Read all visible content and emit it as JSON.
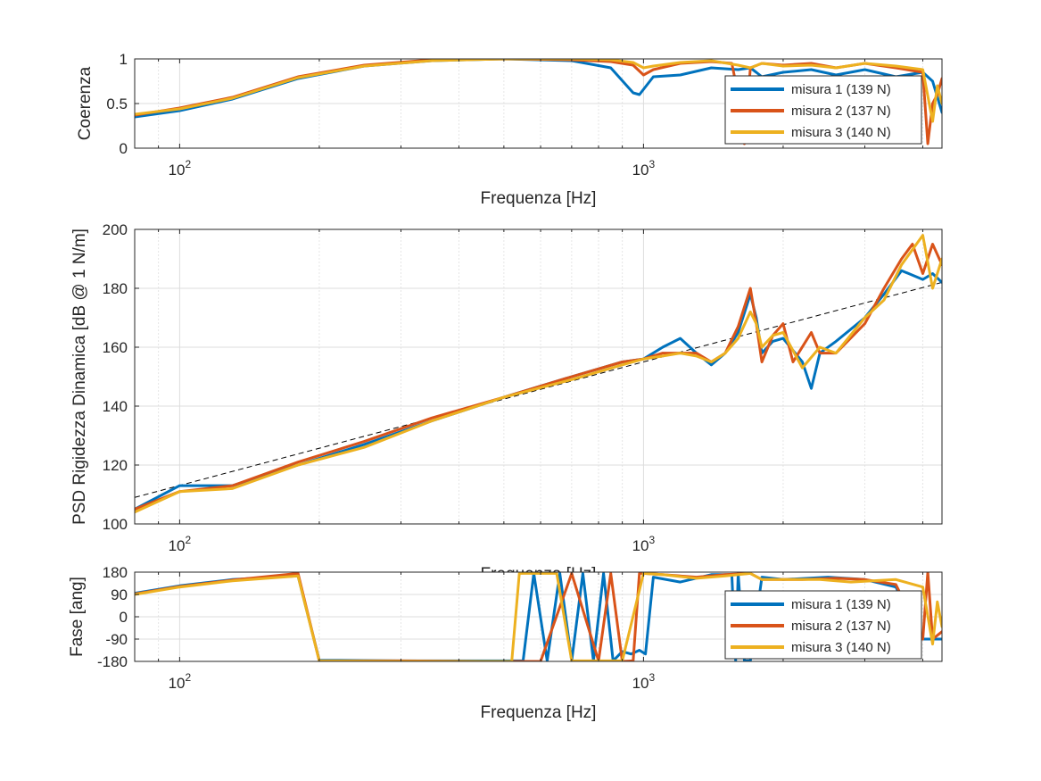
{
  "chart_data": [
    {
      "type": "line",
      "xscale": "log",
      "xlim": [
        80,
        4400
      ],
      "ylim": [
        0,
        1
      ],
      "xlabel": "Frequenza [Hz]",
      "ylabel": "Coerenza",
      "xticks": [
        {
          "value": 100,
          "base": "10",
          "exp": "2"
        },
        {
          "value": 1000,
          "base": "10",
          "exp": "3"
        }
      ],
      "yticks": [
        "0",
        "0.5",
        "1"
      ],
      "yticks_values": [
        0,
        0.5,
        1
      ],
      "grid": true,
      "legend_location": "right",
      "series": [
        {
          "name": "misura 1 (139 N)",
          "color": "#0072BD",
          "x": [
            80,
            100,
            130,
            180,
            250,
            350,
            500,
            700,
            850,
            950,
            980,
            1050,
            1200,
            1400,
            1600,
            1700,
            1750,
            1800,
            2000,
            2300,
            2600,
            3000,
            3500,
            4000,
            4200,
            4400
          ],
          "y": [
            0.35,
            0.42,
            0.55,
            0.78,
            0.92,
            0.98,
            1.0,
            0.98,
            0.9,
            0.62,
            0.6,
            0.8,
            0.82,
            0.9,
            0.88,
            0.9,
            0.85,
            0.8,
            0.85,
            0.88,
            0.82,
            0.88,
            0.8,
            0.85,
            0.75,
            0.4
          ]
        },
        {
          "name": "misura 2 (137 N)",
          "color": "#D95319",
          "x": [
            80,
            100,
            130,
            180,
            250,
            350,
            500,
            700,
            850,
            950,
            1000,
            1050,
            1200,
            1400,
            1550,
            1600,
            1650,
            1700,
            1800,
            2000,
            2300,
            2600,
            3000,
            3500,
            4000,
            4100,
            4200,
            4300,
            4400
          ],
          "y": [
            0.37,
            0.45,
            0.57,
            0.8,
            0.93,
            0.99,
            1.0,
            0.99,
            0.97,
            0.93,
            0.82,
            0.88,
            0.95,
            0.97,
            0.95,
            0.6,
            0.05,
            0.9,
            0.95,
            0.93,
            0.95,
            0.9,
            0.95,
            0.9,
            0.85,
            0.05,
            0.5,
            0.6,
            0.78
          ]
        },
        {
          "name": "misura 3 (140 N)",
          "color": "#EDB120",
          "x": [
            80,
            100,
            130,
            180,
            250,
            350,
            500,
            700,
            850,
            950,
            1000,
            1050,
            1200,
            1400,
            1600,
            1700,
            1800,
            2000,
            2300,
            2600,
            3000,
            3500,
            4000,
            4200,
            4300,
            4400
          ],
          "y": [
            0.38,
            0.44,
            0.56,
            0.79,
            0.92,
            0.98,
            1.0,
            1.0,
            0.99,
            0.96,
            0.9,
            0.92,
            0.96,
            0.98,
            0.93,
            0.9,
            0.95,
            0.92,
            0.93,
            0.9,
            0.95,
            0.92,
            0.88,
            0.3,
            0.7,
            0.5
          ]
        }
      ],
      "legend": [
        "misura 1 (139 N)",
        "misura 2 (137 N)",
        "misura 3 (140 N)"
      ]
    },
    {
      "type": "line",
      "xscale": "log",
      "xlim": [
        80,
        4400
      ],
      "ylim": [
        100,
        200
      ],
      "xlabel": "Frequenza [Hz]",
      "ylabel": "PSD Rigidezza Dinamica [dB @ 1 N/m]",
      "xticks": [
        {
          "value": 100,
          "base": "10",
          "exp": "2"
        },
        {
          "value": 1000,
          "base": "10",
          "exp": "3"
        }
      ],
      "yticks": [
        "100",
        "120",
        "140",
        "160",
        "180",
        "200"
      ],
      "yticks_values": [
        100,
        120,
        140,
        160,
        180,
        200
      ],
      "grid": true,
      "series": [
        {
          "name": "misura 1 (139 N)",
          "color": "#0072BD",
          "x": [
            80,
            100,
            130,
            180,
            250,
            350,
            500,
            700,
            900,
            1000,
            1100,
            1200,
            1300,
            1400,
            1500,
            1600,
            1700,
            1750,
            1800,
            1900,
            2000,
            2200,
            2300,
            2400,
            2600,
            3000,
            3300,
            3600,
            4000,
            4200,
            4400
          ],
          "y": [
            105,
            113,
            113,
            120,
            127,
            135,
            143,
            150,
            155,
            156,
            160,
            163,
            158,
            154,
            158,
            165,
            178,
            170,
            158,
            162,
            163,
            155,
            146,
            158,
            162,
            170,
            178,
            186,
            183,
            185,
            182
          ]
        },
        {
          "name": "misura 2 (137 N)",
          "color": "#D95319",
          "x": [
            80,
            100,
            130,
            180,
            250,
            350,
            500,
            700,
            900,
            1000,
            1100,
            1200,
            1300,
            1400,
            1500,
            1600,
            1700,
            1750,
            1800,
            1900,
            2000,
            2100,
            2300,
            2400,
            2600,
            3000,
            3300,
            3600,
            3800,
            4000,
            4200,
            4400
          ],
          "y": [
            105,
            111,
            113,
            121,
            128,
            136,
            143,
            150,
            155,
            156,
            158,
            158,
            158,
            155,
            158,
            167,
            180,
            168,
            155,
            164,
            168,
            155,
            165,
            158,
            158,
            168,
            180,
            190,
            195,
            185,
            195,
            188
          ]
        },
        {
          "name": "misura 3 (140 N)",
          "color": "#EDB120",
          "x": [
            80,
            100,
            130,
            180,
            250,
            350,
            500,
            700,
            900,
            1000,
            1100,
            1200,
            1300,
            1400,
            1500,
            1600,
            1700,
            1750,
            1800,
            1900,
            2000,
            2200,
            2400,
            2600,
            3000,
            3300,
            3600,
            4000,
            4200,
            4400
          ],
          "y": [
            104,
            111,
            112,
            120,
            126,
            135,
            143,
            149,
            154,
            156,
            157,
            158,
            157,
            155,
            158,
            163,
            172,
            168,
            160,
            164,
            165,
            153,
            160,
            158,
            170,
            176,
            188,
            198,
            180,
            190
          ]
        }
      ],
      "reference_line": {
        "style": "dashed",
        "color": "#000000",
        "x": [
          80,
          4400
        ],
        "y": [
          109,
          182
        ]
      }
    },
    {
      "type": "line",
      "xscale": "log",
      "xlim": [
        80,
        4400
      ],
      "ylim": [
        -180,
        180
      ],
      "xlabel": "Frequenza [Hz]",
      "ylabel": "Fase [ang]",
      "xticks": [
        {
          "value": 100,
          "base": "10",
          "exp": "2"
        },
        {
          "value": 1000,
          "base": "10",
          "exp": "3"
        }
      ],
      "yticks": [
        "-180",
        "-90",
        "0",
        "90",
        "180"
      ],
      "yticks_values": [
        -180,
        -90,
        0,
        90,
        180
      ],
      "grid": true,
      "legend_location": "right",
      "series": [
        {
          "name": "misura 1 (139 N)",
          "color": "#0072BD",
          "x": [
            80,
            100,
            130,
            180,
            200,
            300,
            450,
            550,
            580,
            620,
            660,
            700,
            740,
            780,
            820,
            860,
            900,
            940,
            980,
            1010,
            1050,
            1200,
            1400,
            1550,
            1580,
            1600,
            1650,
            1680,
            1700,
            1800,
            2000,
            2500,
            3000,
            3500,
            4000,
            4400
          ],
          "y": [
            95,
            125,
            150,
            165,
            -175,
            -178,
            -178,
            -178,
            175,
            -178,
            175,
            -178,
            175,
            -178,
            175,
            -178,
            -140,
            -150,
            -135,
            -150,
            160,
            140,
            170,
            170,
            -178,
            175,
            -178,
            -178,
            -178,
            160,
            150,
            160,
            150,
            120,
            -90,
            -90
          ]
        },
        {
          "name": "misura 2 (137 N)",
          "color": "#D95319",
          "x": [
            80,
            100,
            130,
            180,
            200,
            300,
            450,
            600,
            700,
            800,
            850,
            900,
            950,
            980,
            1000,
            1100,
            1300,
            1500,
            1700,
            1800,
            2200,
            2600,
            3000,
            3500,
            4000,
            4100,
            4200,
            4400
          ],
          "y": [
            92,
            122,
            148,
            175,
            -178,
            -178,
            -180,
            -180,
            175,
            -178,
            175,
            -180,
            -178,
            175,
            175,
            170,
            160,
            170,
            175,
            150,
            150,
            155,
            150,
            130,
            -90,
            180,
            -90,
            -60
          ]
        },
        {
          "name": "misura 3 (140 N)",
          "color": "#EDB120",
          "x": [
            80,
            100,
            130,
            180,
            200,
            300,
            450,
            520,
            540,
            560,
            600,
            650,
            700,
            750,
            800,
            850,
            900,
            1000,
            1100,
            1300,
            1500,
            1700,
            1800,
            2000,
            2400,
            2800,
            3500,
            4000,
            4200,
            4300,
            4400
          ],
          "y": [
            90,
            120,
            145,
            165,
            -178,
            -180,
            -180,
            -180,
            175,
            175,
            175,
            175,
            -178,
            -178,
            -178,
            -178,
            -178,
            175,
            170,
            155,
            165,
            175,
            150,
            150,
            150,
            140,
            150,
            120,
            -110,
            60,
            -40
          ]
        }
      ],
      "legend": [
        "misura 1 (139 N)",
        "misura 2 (137 N)",
        "misura 3 (140 N)"
      ]
    }
  ]
}
